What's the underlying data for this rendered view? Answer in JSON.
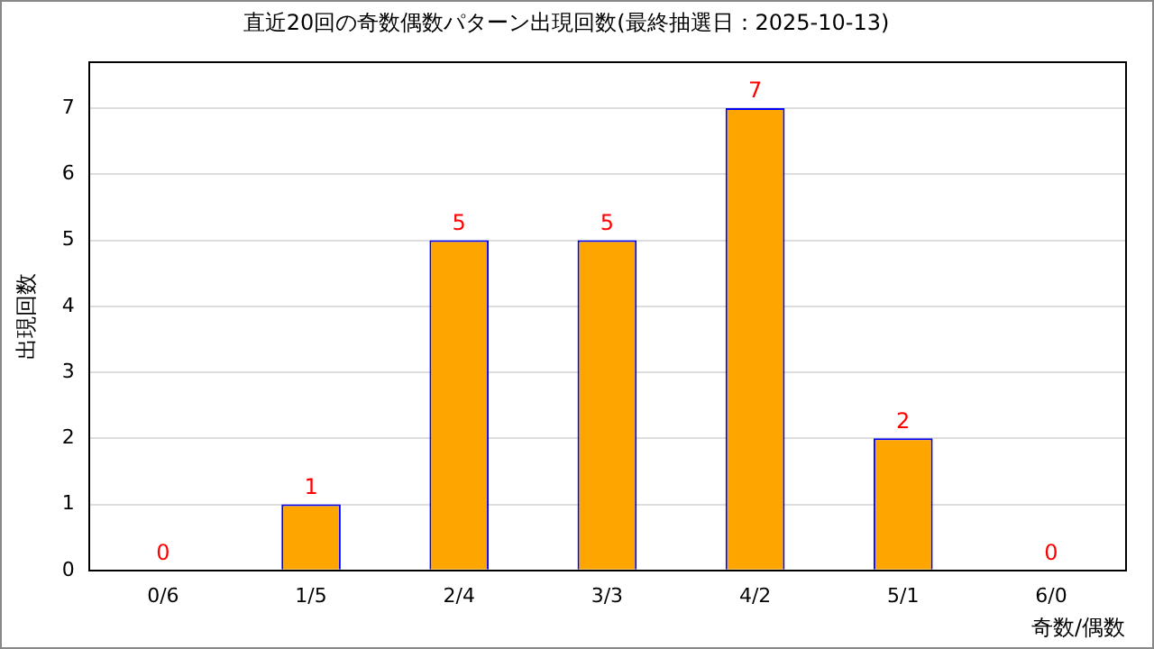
{
  "chart_data": {
    "type": "bar",
    "title": "直近20回の奇数偶数パターン出現回数(最終抽選日：2025-10-13)",
    "xlabel": "奇数/偶数",
    "ylabel": "出現回数",
    "categories": [
      "0/6",
      "1/5",
      "2/4",
      "3/3",
      "4/2",
      "5/1",
      "6/0"
    ],
    "values": [
      0,
      1,
      5,
      5,
      7,
      2,
      0
    ],
    "color": "#ffa500",
    "ylim": [
      0,
      7.7
    ],
    "yticks": [
      0,
      1,
      2,
      3,
      4,
      5,
      6,
      7
    ],
    "grid": "y",
    "legend": false,
    "data_labels": true
  }
}
